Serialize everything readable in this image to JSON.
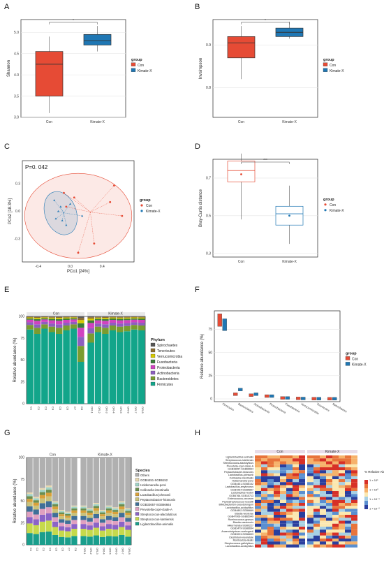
{
  "panels": {
    "A": "A",
    "B": "B",
    "C": "C",
    "D": "D",
    "E": "E",
    "F": "F",
    "G": "G",
    "H": "H"
  },
  "colors": {
    "con": "#e64b35",
    "kimate": "#1f77b4",
    "teal": "#12a58a",
    "grey": "#b0b0b0"
  },
  "chart_data": [
    {
      "panel": "A",
      "type": "box",
      "ylabel": "Shannon",
      "categories": [
        "Con",
        "Kimate-X"
      ],
      "ylim": [
        3.0,
        5.3
      ],
      "yticks": [
        "3.0",
        "3.5",
        "4.0",
        "4.5",
        "5.0"
      ],
      "sig": "*",
      "legend": {
        "title": "group",
        "items": [
          "Con",
          "Kimate-X"
        ]
      },
      "boxes": [
        {
          "q1": 3.5,
          "median": 4.25,
          "q3": 4.55,
          "min": 3.1,
          "max": 4.9
        },
        {
          "q1": 4.7,
          "median": 4.8,
          "q3": 4.95,
          "min": 4.55,
          "max": 5.15
        }
      ]
    },
    {
      "panel": "B",
      "type": "box",
      "ylabel": "Invsimpson",
      "categories": [
        "Con",
        "Kimate-X"
      ],
      "ylim": [
        0.73,
        0.96
      ],
      "yticks": [
        "0.8",
        "0.9"
      ],
      "sig": "*",
      "legend": {
        "title": "group",
        "items": [
          "Con",
          "Kimate-X"
        ]
      },
      "boxes": [
        {
          "q1": 0.87,
          "median": 0.905,
          "q3": 0.92,
          "min": 0.82,
          "max": 0.945
        },
        {
          "q1": 0.92,
          "median": 0.93,
          "q3": 0.94,
          "min": 0.915,
          "max": 0.955
        }
      ]
    },
    {
      "panel": "C",
      "type": "scatter",
      "annotation": "P=0. 042",
      "xlabel": "PCo1 [24%]",
      "ylabel": "PCo2 [18.3%]",
      "xticks": [
        "-0.4",
        "0.0",
        "0.4"
      ],
      "yticks": [
        "-0.3",
        "0.0",
        "0.3"
      ],
      "legend": {
        "title": "group",
        "items": [
          "Con",
          "Kimate-X"
        ]
      },
      "series": [
        {
          "name": "Con",
          "x": [
            0.55,
            0.5,
            0.1,
            0.05,
            -0.05,
            -0.08,
            0.3,
            0.65
          ],
          "y": [
            0.28,
            0.1,
            -0.45,
            0.15,
            0.05,
            0.2,
            -0.35,
            -0.05
          ]
        },
        {
          "name": "Kimate-X",
          "x": [
            -0.2,
            -0.15,
            -0.1,
            -0.12,
            -0.05,
            -0.18,
            0.0,
            0.15
          ],
          "y": [
            0.12,
            0.0,
            -0.1,
            0.05,
            -0.15,
            -0.08,
            0.08,
            -0.05
          ]
        }
      ]
    },
    {
      "panel": "D",
      "type": "box",
      "ylabel": "Bray-Curtis distance",
      "categories": [
        "Con",
        "Kimate-X"
      ],
      "ylim": [
        0.28,
        0.8
      ],
      "yticks": [
        "0.3",
        "0.5",
        "0.7"
      ],
      "sig": "***",
      "legend": {
        "title": "group",
        "items": [
          "Con",
          "Kimate-X"
        ]
      },
      "boxes": [
        {
          "q1": 0.68,
          "median": 0.74,
          "q3": 0.79,
          "min": 0.48,
          "max": 0.83,
          "mean": 0.72
        },
        {
          "q1": 0.45,
          "median": 0.51,
          "q3": 0.55,
          "min": 0.35,
          "max": 0.66,
          "mean": 0.5
        }
      ]
    },
    {
      "panel": "E",
      "type": "bar",
      "ylabel": "Relative abundance (%)",
      "yticks": [
        "0",
        "25",
        "50",
        "75",
        "100"
      ],
      "groups": [
        "Con",
        "Kimate-X"
      ],
      "categories": [
        "C1",
        "C2",
        "C3",
        "C4",
        "C5",
        "C6",
        "C7",
        "C8",
        "OR-1",
        "OR-2",
        "OR-3",
        "OR-4",
        "OR-5",
        "OR-6",
        "OR-7",
        "OR-8"
      ],
      "legend": {
        "title": "Phylum",
        "items": [
          "Spirochaetes",
          "Tenericutes",
          "Verrucomicrobia",
          "Fusobacteria",
          "Proteobacteria",
          "Actinobacteria",
          "Bacteroidetes",
          "Firmicutes"
        ]
      },
      "series_colors": [
        "#555555",
        "#8c6d31",
        "#d6c900",
        "#3a7d3a",
        "#d042c0",
        "#8d5fbf",
        "#7a9c2f",
        "#12a58a"
      ],
      "firmicutes": [
        85,
        80,
        86,
        82,
        80,
        84,
        86,
        48,
        70,
        82,
        80,
        84,
        82,
        83,
        85,
        84
      ]
    },
    {
      "panel": "F",
      "type": "box",
      "ylabel": "Relative abundance (%)",
      "yticks": [
        "0",
        "25",
        "50",
        "75"
      ],
      "categories": [
        "Firmicutes",
        "Bacteroidetes",
        "Actinobacteria",
        "Proteobacteria",
        "Fusobacteria",
        "Verrucomicrobia",
        "Tenericutes",
        "Spirochaetes"
      ],
      "legend": {
        "title": "group",
        "items": [
          "Con",
          "Kimate-X"
        ]
      },
      "con_median": [
        85,
        5,
        4,
        3,
        1,
        0.5,
        0.2,
        0.1
      ],
      "kimate_median": [
        80,
        10,
        5,
        3,
        1,
        0.4,
        0.2,
        0.1
      ]
    },
    {
      "panel": "G",
      "type": "bar",
      "ylabel": "Relative abundance (%)",
      "yticks": [
        "0",
        "25",
        "50",
        "75",
        "100"
      ],
      "groups": [
        "Con",
        "Kimate-X"
      ],
      "categories": [
        "C1",
        "C2",
        "C3",
        "C4",
        "C5",
        "C6",
        "C7",
        "C8",
        "OR-1",
        "OR-2",
        "OR-3",
        "OR-4",
        "OR-5",
        "OR-6",
        "OR-7",
        "OR-8"
      ],
      "legend": {
        "title": "Species",
        "items": [
          "Others",
          "GGB4451-SGB6152",
          "Holdemanella-porci",
          "Collinsella-intestinalis",
          "Lactobacillus-johnsonii",
          "Peptacetobacter-hiranonis",
          "GGB33657-SGB66664",
          "Prevotella-copri-clade-A",
          "Streptococcus-alactolyticus",
          "Streptococcus-lutetiensis",
          "Ligilactobacillus-animalis"
        ]
      }
    },
    {
      "panel": "H",
      "type": "heatmap",
      "groups": [
        "Con",
        "Kimate-X"
      ],
      "legend": {
        "title": "% Relative Abundance",
        "items": [
          "1 × 10¹",
          "1 × 10⁰",
          "1 × 10⁻¹",
          "1 × 10⁻²"
        ]
      },
      "rows": [
        "Ligilactobacillus-animalis",
        "Streptococcus-lutetiensis",
        "Streptococcus-alactolyticus",
        "Prevotella-copri-clade-A",
        "GGB33657-SGB66664",
        "Peptacetobacter-hiranonis",
        "Lactobacillus-johnsonii",
        "Collinsella-intestinalis",
        "Holdemanella-porci",
        "GGB4451-SGB6152",
        "Lactobacillus-amylovorus",
        "GGB4264-SGB5897",
        "Lactobacillus-reuteri",
        "GGB4766-SGB15713",
        "Enterococcus-cecorum",
        "Peptostreptococcus-russellii",
        "Bifidobacterium-pseudolongum",
        "Lactobacillus-acidophilus",
        "GGB4892-SGB6669",
        "Blautia-wexlerae",
        "GGB47906-SGB65949",
        "Ruminococcus-gnavus",
        "Blautia-caecimuris",
        "Akkermansia-SGB9227",
        "GGB3479-SGB6694",
        "Anaerobutyricum-soehngenii",
        "GGB3023-SGB6693",
        "Clostridium-neonatale",
        "Romboutsia-ilealis",
        "Streptococcus-gallolyticus",
        "Lactobacillus-acidophilus"
      ]
    }
  ]
}
